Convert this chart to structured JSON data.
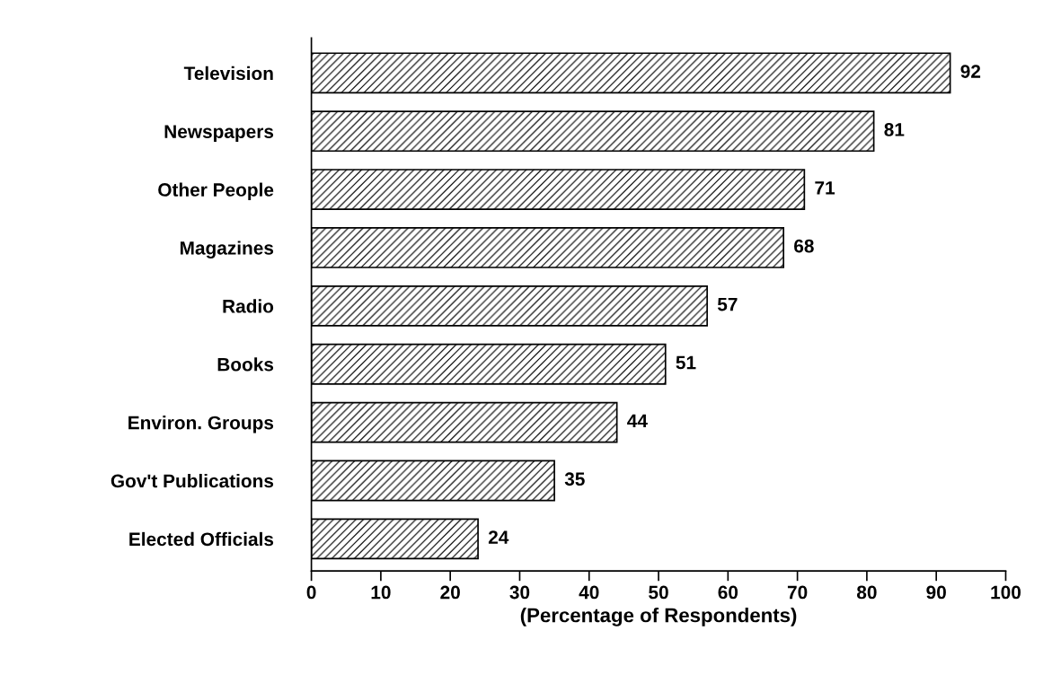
{
  "chart_data": {
    "type": "bar",
    "orientation": "horizontal",
    "xlabel": "(Percentage of Respondents)",
    "categories": [
      "Television",
      "Newspapers",
      "Other People",
      "Magazines",
      "Radio",
      "Books",
      "Environ. Groups",
      "Gov't Publications",
      "Elected Officials"
    ],
    "values": [
      92,
      81,
      71,
      68,
      57,
      51,
      44,
      35,
      24
    ],
    "color": "#000000",
    "xlim": [
      0,
      100
    ],
    "xticks": [
      0,
      10,
      20,
      30,
      40,
      50,
      60,
      70,
      80,
      90,
      100
    ],
    "data_labels": true,
    "grid": false,
    "legend": false
  }
}
